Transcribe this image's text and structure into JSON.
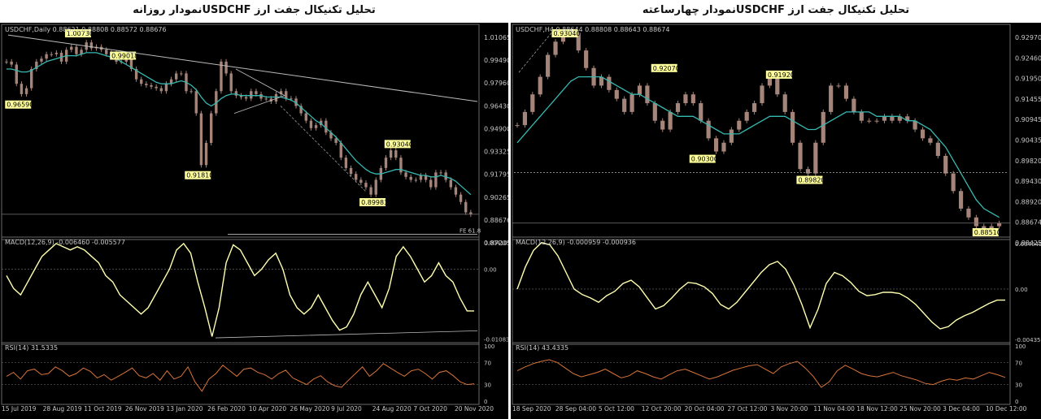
{
  "titles": {
    "left": "تحلیل تکنیکال جفت ارز  USDCHFنمودار روزانه",
    "right": "تحلیل تکنیکال جفت ارز  USDCHFنمودار چهارساعته"
  },
  "colors": {
    "background": "#000000",
    "candles": "#a5847a",
    "moving_average": "#36b9b1",
    "macd": "#ffffb0",
    "rsi": "#d8743a",
    "label_bg": "#ffff9c",
    "text": "#c8c8c8"
  },
  "chart_data": [
    {
      "type": "candlestick",
      "instrument": "USDCHF",
      "timeframe": "Daily",
      "header": "USDCHF,Daily  0.88621 0.88808 0.88572 0.88676",
      "y_ticks": [
        "1.01065",
        "0.99490",
        "0.97960",
        "0.96430",
        "0.94900",
        "0.93325",
        "0.91795",
        "0.90265",
        "0.88676",
        "0.87205"
      ],
      "ylim": [
        0.8718,
        1.013
      ],
      "x_ticks": [
        "15 Jul 2019",
        "28 Aug 2019",
        "11 Oct 2019",
        "26 Nov 2019",
        "13 Jan 2020",
        "26 Feb 2020",
        "10 Apr 2020",
        "26 May 2020",
        "9 Jul 2020",
        "24 Aug 2020",
        "7 Oct 2020",
        "20 Nov 2020"
      ],
      "close_approx": [
        0.99,
        0.988,
        0.975,
        0.968,
        0.972,
        0.985,
        0.99,
        0.992,
        0.995,
        0.995,
        0.996,
        0.99,
        0.998,
        1.0,
        0.995,
        0.998,
        1.003,
        0.999,
        1.0,
        0.998,
        0.995,
        0.996,
        0.99,
        0.99,
        0.994,
        0.985,
        0.978,
        0.975,
        0.974,
        0.973,
        0.972,
        0.97,
        0.975,
        0.978,
        0.982,
        0.982,
        0.97,
        0.97,
        0.955,
        0.92,
        0.935,
        0.955,
        0.97,
        0.99,
        0.982,
        0.97,
        0.967,
        0.966,
        0.965,
        0.97,
        0.968,
        0.965,
        0.965,
        0.963,
        0.968,
        0.97,
        0.965,
        0.965,
        0.96,
        0.955,
        0.95,
        0.945,
        0.947,
        0.95,
        0.942,
        0.938,
        0.935,
        0.925,
        0.918,
        0.914,
        0.91,
        0.908,
        0.905,
        0.9,
        0.91,
        0.918,
        0.925,
        0.93,
        0.925,
        0.915,
        0.912,
        0.91,
        0.91,
        0.913,
        0.91,
        0.905,
        0.915,
        0.915,
        0.91,
        0.905,
        0.9,
        0.895,
        0.888,
        0.8867
      ],
      "ma_approx": [
        0.985,
        0.985,
        0.984,
        0.983,
        0.983,
        0.984,
        0.986,
        0.988,
        0.99,
        0.991,
        0.992,
        0.993,
        0.994,
        0.994,
        0.994,
        0.995,
        0.996,
        0.996,
        0.996,
        0.995,
        0.994,
        0.993,
        0.992,
        0.99,
        0.988,
        0.986,
        0.984,
        0.982,
        0.98,
        0.978,
        0.976,
        0.975,
        0.975,
        0.975,
        0.976,
        0.977,
        0.976,
        0.974,
        0.971,
        0.966,
        0.962,
        0.96,
        0.962,
        0.965,
        0.967,
        0.968,
        0.968,
        0.967,
        0.967,
        0.967,
        0.967,
        0.967,
        0.966,
        0.966,
        0.966,
        0.966,
        0.965,
        0.964,
        0.962,
        0.959,
        0.956,
        0.953,
        0.95,
        0.948,
        0.945,
        0.942,
        0.939,
        0.935,
        0.931,
        0.927,
        0.923,
        0.92,
        0.917,
        0.915,
        0.914,
        0.914,
        0.915,
        0.916,
        0.917,
        0.917,
        0.916,
        0.915,
        0.914,
        0.913,
        0.913,
        0.912,
        0.912,
        0.913,
        0.912,
        0.911,
        0.909,
        0.906,
        0.903,
        0.9
      ],
      "price_labels": [
        {
          "text": "0.96590",
          "at": "left"
        },
        {
          "text": "1.00730",
          "at": "Oct 2019 high"
        },
        {
          "text": "0.99018",
          "at": "Feb 2020"
        },
        {
          "text": "0.91810",
          "at": "Mar 2020 low"
        },
        {
          "text": "0.93040",
          "at": "Aug 2020"
        },
        {
          "text": "0.89983",
          "at": "Jul 2020 low"
        }
      ],
      "annotations": [
        "FE 61.8"
      ],
      "macd": {
        "header": "MACD(12,26,9) -0.006460 -0.005577",
        "ticks": [
          "0.004101",
          "0.00",
          "-0.010833"
        ],
        "ylim": [
          -0.0112,
          0.0045
        ],
        "values_approx": [
          -0.001,
          -0.003,
          -0.004,
          -0.002,
          0.0,
          0.002,
          0.003,
          0.004,
          0.0035,
          0.003,
          0.0035,
          0.003,
          0.002,
          0.001,
          -0.001,
          -0.002,
          -0.004,
          -0.005,
          -0.006,
          -0.007,
          -0.006,
          -0.004,
          -0.002,
          0.0,
          0.003,
          0.004,
          0.0025,
          -0.002,
          -0.006,
          -0.0105,
          -0.006,
          0.001,
          0.0038,
          0.003,
          0.001,
          -0.001,
          0.0,
          0.0015,
          0.0025,
          0.0,
          -0.004,
          -0.006,
          -0.007,
          -0.006,
          -0.004,
          -0.006,
          -0.008,
          -0.0095,
          -0.009,
          -0.007,
          -0.004,
          -0.002,
          -0.004,
          -0.006,
          -0.003,
          0.002,
          0.0035,
          0.002,
          0.0,
          -0.002,
          -0.001,
          0.001,
          -0.001,
          -0.002,
          -0.0045,
          -0.0065,
          -0.0065
        ]
      },
      "rsi": {
        "header": "RSI(14) 31.5335",
        "ticks": [
          "100",
          "70",
          "30",
          "0"
        ],
        "ylim": [
          0,
          100
        ],
        "values_approx": [
          45,
          52,
          40,
          55,
          58,
          48,
          50,
          62,
          55,
          45,
          50,
          60,
          54,
          42,
          48,
          38,
          45,
          52,
          60,
          46,
          42,
          50,
          38,
          55,
          40,
          45,
          62,
          35,
          18,
          40,
          50,
          65,
          55,
          45,
          58,
          60,
          52,
          48,
          40,
          50,
          56,
          42,
          36,
          30,
          40,
          46,
          35,
          28,
          25,
          38,
          50,
          62,
          45,
          55,
          68,
          60,
          52,
          45,
          55,
          58,
          50,
          40,
          52,
          55,
          46,
          35,
          30,
          31.5
        ]
      }
    },
    {
      "type": "candlestick",
      "instrument": "USDCHF",
      "timeframe": "H4",
      "header": "USDCHF,H4  0.88644 0.88808 0.88643 0.88674",
      "y_ticks": [
        "0.92970",
        "0.92460",
        "0.91950",
        "0.91455",
        "0.90945",
        "0.90435",
        "0.89820",
        "0.89430",
        "0.88920",
        "0.88674",
        "0.88425"
      ],
      "ylim": [
        0.8837,
        0.9312
      ],
      "x_ticks": [
        "18 Sep 2020",
        "28 Sep 04:00",
        "5 Oct 12:00",
        "12 Oct 20:00",
        "20 Oct 04:00",
        "27 Oct 12:00",
        "3 Nov 20:00",
        "11 Nov 04:00",
        "18 Nov 12:00",
        "25 Nov 20:00",
        "3 Dec 04:00",
        "10 Dec 12:00"
      ],
      "close_approx": [
        0.909,
        0.912,
        0.916,
        0.92,
        0.925,
        0.928,
        0.93,
        0.93,
        0.926,
        0.922,
        0.918,
        0.92,
        0.917,
        0.915,
        0.912,
        0.916,
        0.918,
        0.914,
        0.91,
        0.908,
        0.912,
        0.914,
        0.916,
        0.914,
        0.91,
        0.906,
        0.903,
        0.905,
        0.908,
        0.91,
        0.912,
        0.914,
        0.918,
        0.92,
        0.916,
        0.912,
        0.905,
        0.899,
        0.898,
        0.905,
        0.912,
        0.918,
        0.918,
        0.915,
        0.912,
        0.91,
        0.91,
        0.91,
        0.911,
        0.91,
        0.911,
        0.91,
        0.908,
        0.906,
        0.905,
        0.902,
        0.898,
        0.894,
        0.89,
        0.888,
        0.886,
        0.885,
        0.886,
        0.8867
      ],
      "ma_approx": [
        0.905,
        0.907,
        0.909,
        0.911,
        0.913,
        0.915,
        0.917,
        0.919,
        0.92,
        0.92,
        0.92,
        0.92,
        0.919,
        0.918,
        0.917,
        0.916,
        0.916,
        0.915,
        0.914,
        0.913,
        0.912,
        0.911,
        0.911,
        0.911,
        0.91,
        0.909,
        0.908,
        0.907,
        0.907,
        0.907,
        0.908,
        0.909,
        0.91,
        0.911,
        0.911,
        0.911,
        0.91,
        0.909,
        0.908,
        0.908,
        0.909,
        0.91,
        0.911,
        0.912,
        0.912,
        0.912,
        0.912,
        0.911,
        0.911,
        0.911,
        0.911,
        0.91,
        0.91,
        0.909,
        0.908,
        0.906,
        0.904,
        0.901,
        0.898,
        0.895,
        0.892,
        0.89,
        0.889,
        0.888
      ],
      "price_labels": [
        {
          "text": "0.93040",
          "at": "Sep 2020 high"
        },
        {
          "text": "0.92070",
          "at": "Oct 20"
        },
        {
          "text": "0.91920",
          "at": "Nov 3"
        },
        {
          "text": "0.90300",
          "at": "Oct 12"
        },
        {
          "text": "0.89820",
          "at": "Nov 9 low"
        },
        {
          "text": "0.88510",
          "at": "Dec low"
        }
      ],
      "macd": {
        "header": "MACD(12,26,9) -0.000959 -0.000936",
        "ticks": [
          "0.004040",
          "0.00",
          "-0.004351"
        ],
        "ylim": [
          -0.0047,
          0.0044
        ],
        "values_approx": [
          0.0,
          0.002,
          0.0035,
          0.0042,
          0.004,
          0.003,
          0.0015,
          0.0,
          -0.0005,
          -0.0008,
          -0.0012,
          -0.0006,
          -0.0002,
          0.0005,
          0.0008,
          0.0002,
          -0.0008,
          -0.0018,
          -0.0015,
          -0.0008,
          0.0,
          0.0006,
          0.0005,
          0.0002,
          -0.0004,
          -0.0014,
          -0.0018,
          -0.0012,
          -0.0003,
          0.0006,
          0.0015,
          0.0022,
          0.0025,
          0.0018,
          0.0004,
          -0.0014,
          -0.0035,
          -0.0018,
          0.0005,
          0.0015,
          0.0012,
          0.0006,
          -0.0002,
          -0.0006,
          -0.0005,
          -0.0003,
          -0.0003,
          -0.0004,
          -0.0008,
          -0.0014,
          -0.0022,
          -0.003,
          -0.0036,
          -0.0034,
          -0.0028,
          -0.0024,
          -0.0021,
          -0.0017,
          -0.0013,
          -0.001,
          -0.001
        ]
      },
      "rsi": {
        "header": "RSI(14) 43.4335",
        "ticks": [
          "100",
          "70",
          "30",
          "0"
        ],
        "ylim": [
          0,
          100
        ],
        "values_approx": [
          55,
          62,
          68,
          72,
          75,
          70,
          60,
          50,
          44,
          48,
          52,
          58,
          50,
          42,
          46,
          55,
          50,
          44,
          40,
          48,
          55,
          58,
          52,
          46,
          40,
          44,
          50,
          56,
          60,
          64,
          66,
          58,
          50,
          62,
          68,
          72,
          60,
          45,
          25,
          35,
          55,
          65,
          58,
          50,
          46,
          44,
          48,
          52,
          46,
          42,
          38,
          32,
          30,
          36,
          40,
          38,
          42,
          40,
          46,
          52,
          48,
          43
        ]
      }
    }
  ]
}
